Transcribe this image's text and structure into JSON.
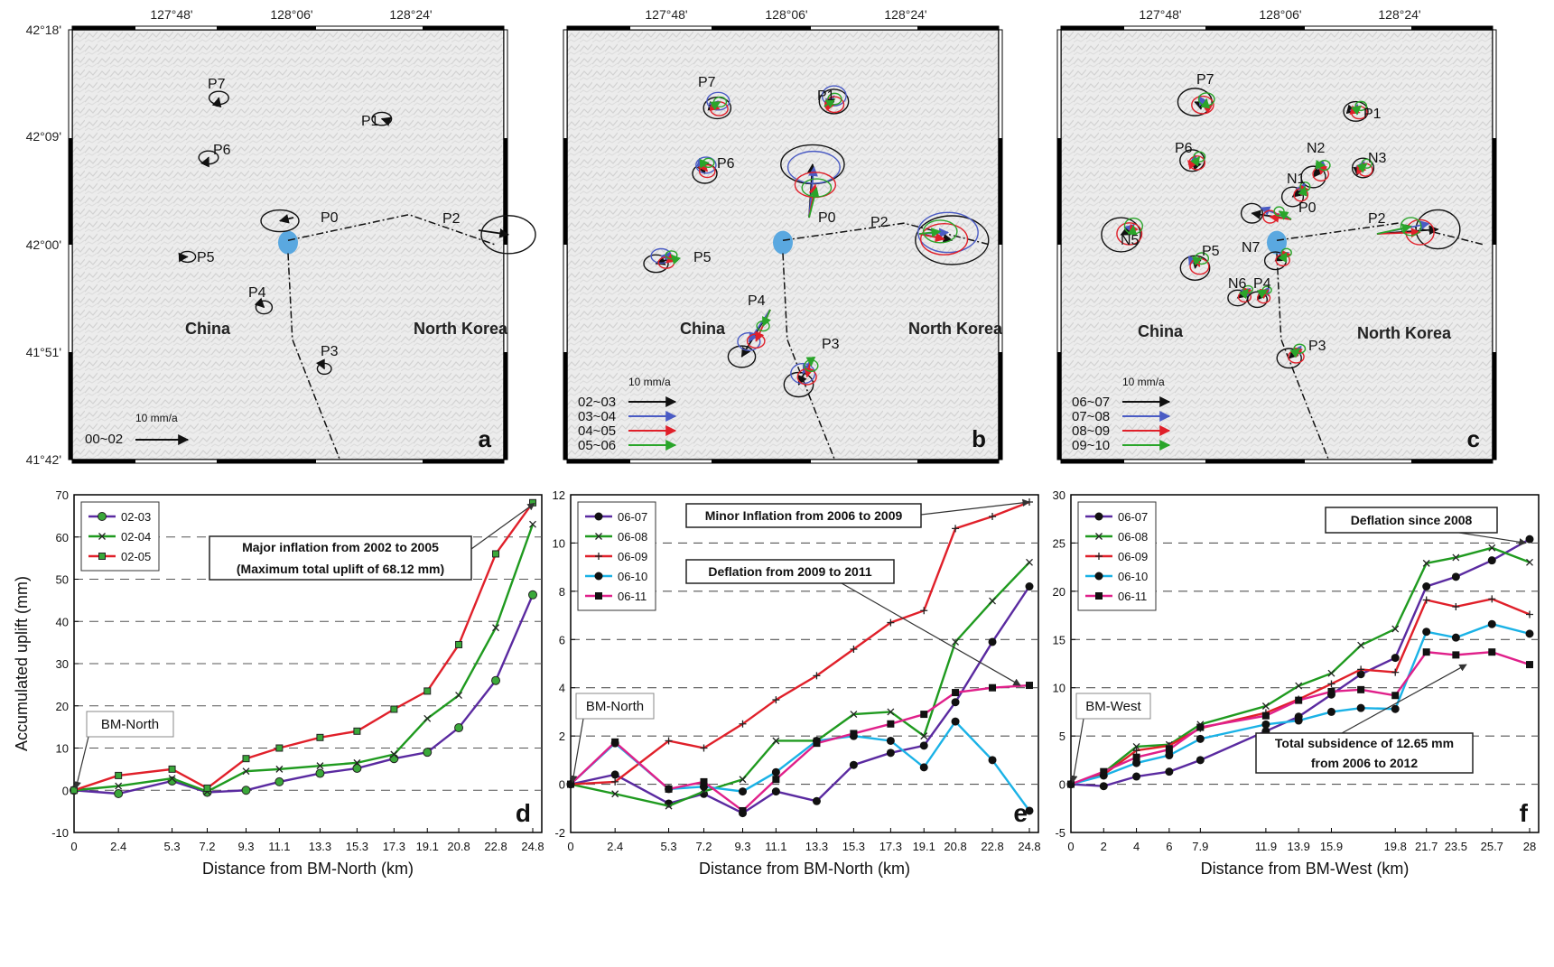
{
  "maps": {
    "lat_labels": [
      "42°18'",
      "42°09'",
      "42°00'",
      "41°51'",
      "41°42'"
    ],
    "lon_labels": [
      "127°48'",
      "128°06'",
      "128°24'"
    ],
    "country_labels": [
      "China",
      "North Korea"
    ],
    "scale_label": "10 mm/a",
    "panels": [
      {
        "letter": "a",
        "points": [
          {
            "label": "P7",
            "vec": [
              0.4,
              -1.6
            ],
            "ell": [
              1.8,
              1.2
            ]
          },
          {
            "label": "P6",
            "vec": [
              0.5,
              -1.1
            ],
            "ell": [
              1.8,
              1.2
            ]
          },
          {
            "label": "P1",
            "vec": [
              -1.2,
              -0.4
            ],
            "ell": [
              1.8,
              1.2
            ]
          },
          {
            "label": "P0",
            "vec": [
              -2.5,
              0.6
            ],
            "ell": [
              3.5,
              2.0
            ]
          },
          {
            "label": "P2",
            "vec": [
              5.5,
              0.8
            ],
            "ell": [
              5.0,
              3.5
            ]
          },
          {
            "label": "P5",
            "vec": [
              1.6,
              -0.1
            ],
            "ell": [
              1.5,
              1.0
            ]
          },
          {
            "label": "P4",
            "vec": [
              0.9,
              0.9
            ],
            "ell": [
              1.5,
              1.2
            ]
          },
          {
            "label": "P3",
            "vec": [
              0.2,
              0.4
            ],
            "ell": [
              1.3,
              1.0
            ]
          }
        ],
        "legend": [
          {
            "label": "00~02",
            "color": "#111111"
          }
        ]
      },
      {
        "letter": "b",
        "points": [
          {
            "label": "P7",
            "vec": [
              1.8,
              -0.4
            ],
            "ell": [
              2.8,
              2.2
            ]
          },
          {
            "label": "P6",
            "vec": [
              1.5,
              1.2
            ],
            "ell": [
              2.5,
              2.0
            ]
          },
          {
            "label": "P1",
            "vec": [
              2.5,
              -1.6
            ],
            "ell": [
              3.0,
              2.5
            ]
          },
          {
            "label": "P0",
            "vec": [
              1.4,
              -10.5
            ],
            "ell": [
              6.5,
              4.0
            ]
          },
          {
            "label": "P2",
            "vec": [
              6.8,
              0.5
            ],
            "ell": [
              7.5,
              5.0
            ]
          },
          {
            "label": "P5",
            "vec": [
              -2.5,
              0.5
            ],
            "ell": [
              2.5,
              1.8
            ]
          },
          {
            "label": "P4",
            "vec": [
              -4.5,
              8.0
            ],
            "ell": [
              2.8,
              2.2
            ]
          },
          {
            "label": "P3",
            "vec": [
              -1.5,
              4.0
            ],
            "ell": [
              3.0,
              2.5
            ]
          }
        ],
        "legend": [
          {
            "label": "02~03",
            "color": "#111111"
          },
          {
            "label": "03~04",
            "color": "#4a5bc4"
          },
          {
            "label": "04~05",
            "color": "#e0202a"
          },
          {
            "label": "05~06",
            "color": "#2aa52a"
          }
        ]
      },
      {
        "letter": "c",
        "points": [
          {
            "label": "P7",
            "vec": [
              -1.2,
              -1.5
            ],
            "ell": [
              3.5,
              2.8
            ]
          },
          {
            "label": "P6",
            "vec": [
              0.3,
              -1.2
            ],
            "ell": [
              2.5,
              2.2
            ]
          },
          {
            "label": "P1",
            "vec": [
              1.0,
              -0.6
            ],
            "ell": [
              2.5,
              2.0
            ]
          },
          {
            "label": "N2",
            "vec": [
              -1.0,
              1.5
            ],
            "ell": [
              2.5,
              2.2
            ]
          },
          {
            "label": "N3",
            "vec": [
              1.5,
              -1.0
            ],
            "ell": [
              2.2,
              2.0
            ]
          },
          {
            "label": "N1",
            "vec": [
              -1.5,
              1.0
            ],
            "ell": [
              2.2,
              2.0
            ]
          },
          {
            "label": "P0",
            "vec": [
              -6.5,
              -1.8
            ],
            "ell": [
              2.2,
              2.0
            ]
          },
          {
            "label": "P2",
            "vec": [
              12.0,
              -1.5
            ],
            "ell": [
              4.5,
              4.0
            ]
          },
          {
            "label": "N5",
            "vec": [
              -1.5,
              0.5
            ],
            "ell": [
              4.0,
              3.5
            ]
          },
          {
            "label": "P5",
            "vec": [
              0.5,
              0.8
            ],
            "ell": [
              3.0,
              2.5
            ]
          },
          {
            "label": "N7",
            "vec": [
              -1.0,
              0.3
            ],
            "ell": [
              2.2,
              1.8
            ]
          },
          {
            "label": "N6",
            "vec": [
              -0.8,
              0.5
            ],
            "ell": [
              2.0,
              1.6
            ]
          },
          {
            "label": "P4",
            "vec": [
              -0.5,
              0.8
            ],
            "ell": [
              2.0,
              1.6
            ]
          },
          {
            "label": "P3",
            "vec": [
              -0.8,
              0.8
            ],
            "ell": [
              2.5,
              2.0
            ]
          }
        ],
        "legend": [
          {
            "label": "06~07",
            "color": "#111111"
          },
          {
            "label": "07~08",
            "color": "#4a5bc4"
          },
          {
            "label": "08~09",
            "color": "#e0202a"
          },
          {
            "label": "09~10",
            "color": "#2aa52a"
          }
        ]
      }
    ]
  },
  "chart_data": [
    {
      "type": "line",
      "panel_letter": "d",
      "xlabel": "Distance from BM-North (km)",
      "ylabel": "Accumulated uplift (mm)",
      "x": [
        0,
        2.4,
        5.3,
        7.2,
        9.3,
        11.1,
        13.3,
        15.3,
        17.3,
        19.1,
        20.8,
        22.8,
        24.8
      ],
      "ylim": [
        -10,
        70
      ],
      "yticks": [
        -10,
        0,
        10,
        20,
        30,
        40,
        50,
        60,
        70
      ],
      "grid": "horizontal dashed",
      "legend_position": "top-left",
      "series": [
        {
          "name": "02-03",
          "color": "#5a2aa0",
          "marker": "circle-green",
          "values": [
            0,
            -0.8,
            2.2,
            -0.5,
            0,
            2,
            4,
            5.2,
            7.5,
            9,
            14.8,
            26,
            46.3
          ]
        },
        {
          "name": "02-04",
          "color": "#1f9a1f",
          "marker": "x",
          "values": [
            0,
            1,
            2.8,
            -0.3,
            4.5,
            5,
            5.8,
            6.5,
            8.5,
            17,
            22.5,
            38.5,
            63
          ]
        },
        {
          "name": "02-05",
          "color": "#e0202a",
          "marker": "square-green",
          "values": [
            0,
            3.5,
            5,
            0.5,
            7.5,
            10,
            12.5,
            14,
            19.2,
            23.5,
            34.5,
            56,
            68.12
          ]
        }
      ],
      "annotations": [
        {
          "text": "Major inflation from 2002 to 2005\n(Maximum total uplift of 68.12 mm)"
        },
        {
          "text": "BM-North"
        }
      ]
    },
    {
      "type": "line",
      "panel_letter": "e",
      "xlabel": "Distance from BM-North (km)",
      "ylabel": "",
      "x": [
        0,
        2.4,
        5.3,
        7.2,
        9.3,
        11.1,
        13.3,
        15.3,
        17.3,
        19.1,
        20.8,
        22.8,
        24.8
      ],
      "ylim": [
        -2,
        12
      ],
      "yticks": [
        -2,
        0,
        2,
        4,
        6,
        8,
        10,
        12
      ],
      "grid": "horizontal dashed",
      "legend_position": "top-left",
      "series": [
        {
          "name": "06-07",
          "color": "#5a2aa0",
          "marker": "circle",
          "values": [
            0,
            0.4,
            -0.8,
            -0.4,
            -1.2,
            -0.3,
            -0.7,
            0.8,
            1.3,
            1.6,
            3.4,
            5.9,
            8.2
          ]
        },
        {
          "name": "06-08",
          "color": "#1f9a1f",
          "marker": "x",
          "values": [
            0,
            -0.4,
            -0.9,
            -0.3,
            0.2,
            1.8,
            1.8,
            2.9,
            3.0,
            2.0,
            5.9,
            7.6,
            9.2
          ]
        },
        {
          "name": "06-09",
          "color": "#e0202a",
          "marker": "plus",
          "values": [
            0,
            0.1,
            1.8,
            1.5,
            2.5,
            3.5,
            4.5,
            5.6,
            6.7,
            7.2,
            10.6,
            11.1,
            11.7
          ]
        },
        {
          "name": "06-10",
          "color": "#1ab2e6",
          "marker": "circle",
          "values": [
            0,
            1.7,
            -0.2,
            -0.1,
            -0.3,
            0.5,
            1.8,
            2.0,
            1.8,
            0.7,
            2.6,
            1.0,
            -1.1
          ]
        },
        {
          "name": "06-11",
          "color": "#e0208a",
          "marker": "square",
          "values": [
            0,
            1.75,
            -0.2,
            0.1,
            -1.1,
            0.2,
            1.7,
            2.1,
            2.5,
            2.9,
            3.8,
            4.0,
            4.1
          ]
        }
      ],
      "annotations": [
        {
          "text": "Minor Inflation from 2006 to 2009"
        },
        {
          "text": "Deflation from 2009 to 2011"
        },
        {
          "text": "BM-North"
        }
      ]
    },
    {
      "type": "line",
      "panel_letter": "f",
      "xlabel": "Distance from BM-West (km)",
      "ylabel": "",
      "x": [
        0,
        2,
        4,
        6,
        7.9,
        11.9,
        13.9,
        15.9,
        19.8,
        21.7,
        23.5,
        25.7,
        28
      ],
      "x_extra_points": [
        17.7
      ],
      "ylim": [
        -5,
        30
      ],
      "yticks": [
        -5,
        0,
        5,
        10,
        15,
        20,
        25,
        30
      ],
      "grid": "horizontal dashed",
      "legend_position": "top-left",
      "series": [
        {
          "name": "06-07",
          "color": "#5a2aa0",
          "marker": "circle",
          "values": [
            0,
            -0.2,
            0.8,
            1.3,
            2.5,
            5.5,
            7.0,
            9.3,
            11.4,
            13.1,
            20.5,
            21.5,
            23.2,
            25.4
          ],
          "x": [
            0,
            2,
            4,
            6,
            7.9,
            11.9,
            13.9,
            15.9,
            17.7,
            19.8,
            21.7,
            23.5,
            25.7,
            28
          ]
        },
        {
          "name": "06-08",
          "color": "#1f9a1f",
          "marker": "x",
          "values": [
            0,
            1.2,
            3.9,
            4.1,
            6.2,
            8.1,
            10.2,
            11.5,
            14.4,
            16.1,
            22.9,
            23.5,
            24.5,
            23.0
          ],
          "x": [
            0,
            2,
            4,
            6,
            7.9,
            11.9,
            13.9,
            15.9,
            17.7,
            19.8,
            21.7,
            23.5,
            25.7,
            28
          ]
        },
        {
          "name": "06-09",
          "color": "#e0202a",
          "marker": "plus",
          "values": [
            0,
            1.0,
            3.5,
            4.0,
            5.8,
            7.4,
            8.8,
            10.4,
            11.9,
            11.6,
            19.1,
            18.4,
            19.2,
            17.6
          ],
          "x": [
            0,
            2,
            4,
            6,
            7.9,
            11.9,
            13.9,
            15.9,
            17.7,
            19.8,
            21.7,
            23.5,
            25.7,
            28
          ]
        },
        {
          "name": "06-10",
          "color": "#1ab2e6",
          "marker": "circle",
          "values": [
            0,
            0.9,
            2.2,
            3.0,
            4.7,
            6.2,
            6.6,
            7.5,
            7.9,
            7.8,
            15.8,
            15.2,
            16.6,
            15.6
          ],
          "x": [
            0,
            2,
            4,
            6,
            7.9,
            11.9,
            13.9,
            15.9,
            17.7,
            19.8,
            21.7,
            23.5,
            25.7,
            28
          ]
        },
        {
          "name": "06-11",
          "color": "#e0208a",
          "marker": "square",
          "values": [
            0,
            1.3,
            2.8,
            3.6,
            5.9,
            7.1,
            8.7,
            9.6,
            9.8,
            9.2,
            13.7,
            13.4,
            13.7,
            12.4
          ],
          "x": [
            0,
            2,
            4,
            6,
            7.9,
            11.9,
            13.9,
            15.9,
            17.7,
            19.8,
            21.7,
            23.5,
            25.7,
            28
          ]
        }
      ],
      "annotations": [
        {
          "text": "Deflation since 2008"
        },
        {
          "text": "Total subsidence of 12.65 mm\nfrom 2006 to 2012"
        },
        {
          "text": "BM-West"
        }
      ]
    }
  ]
}
